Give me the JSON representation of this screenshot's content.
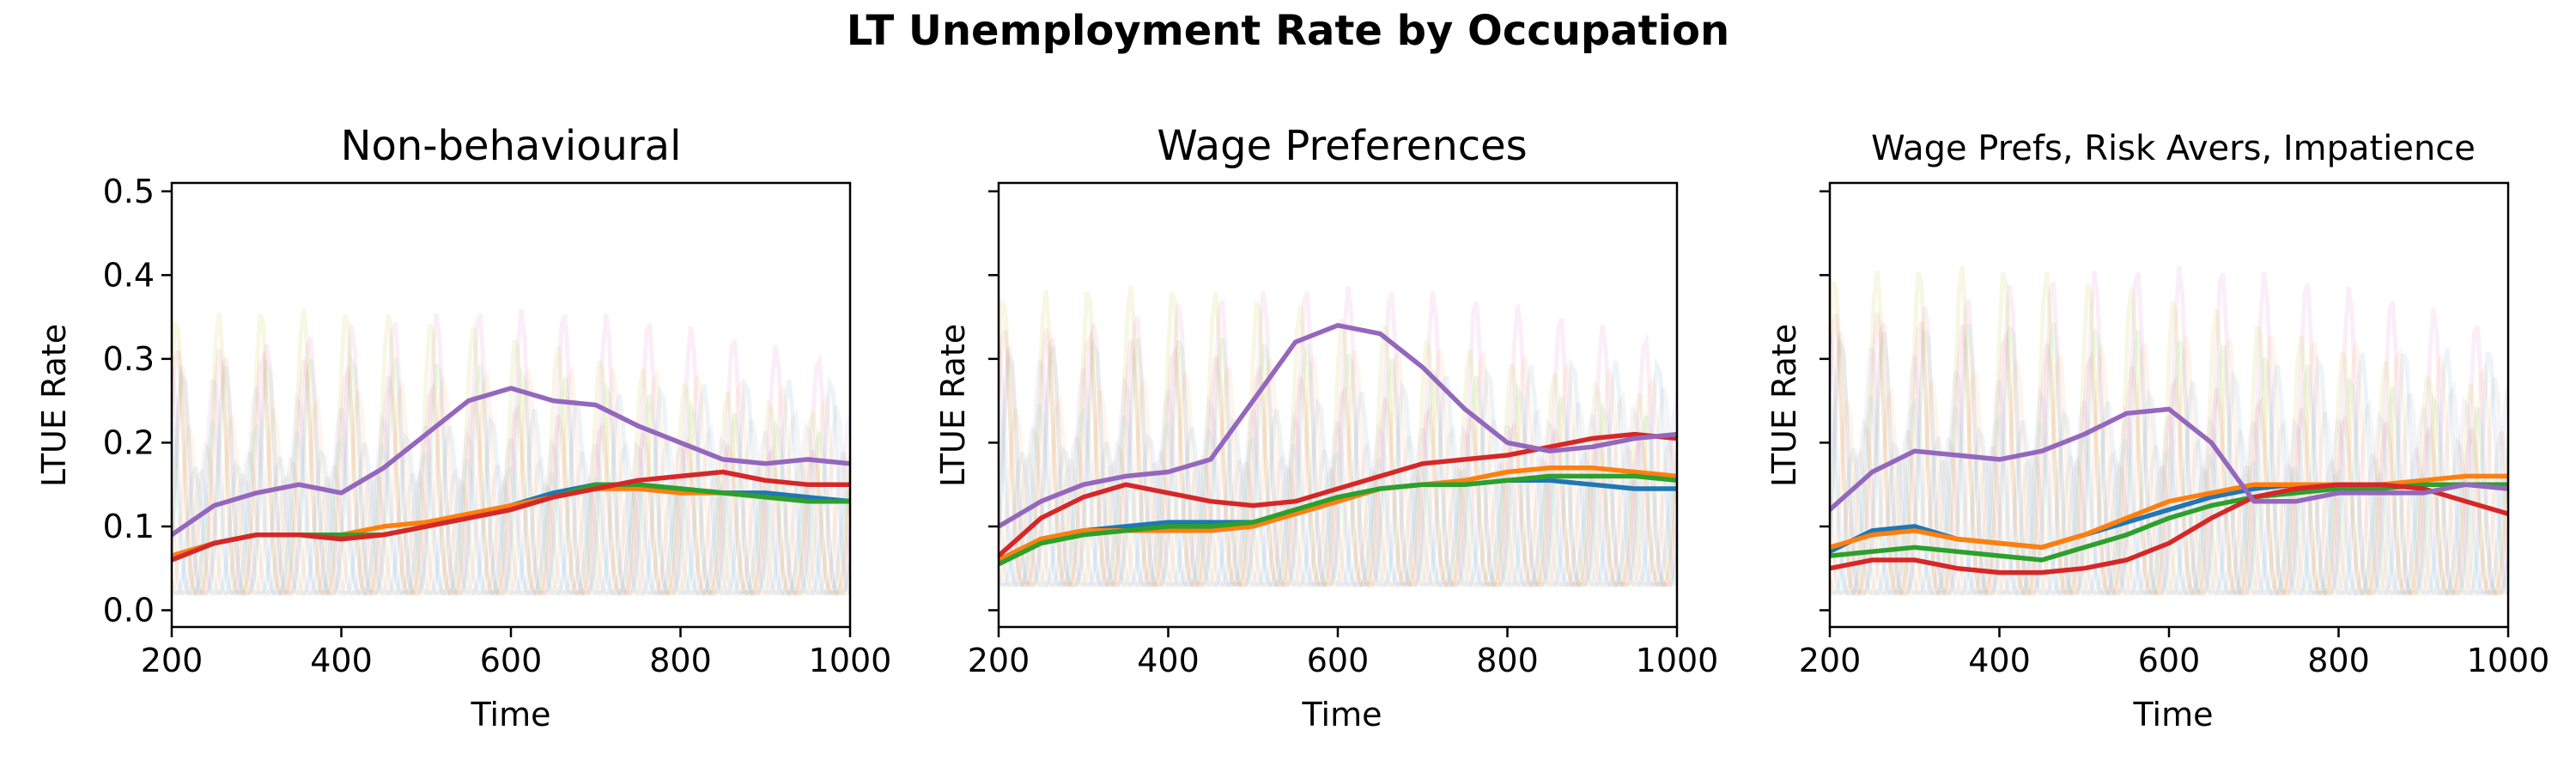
{
  "figure": {
    "title": "LT Unemployment Rate by Occupation"
  },
  "colors": {
    "blue": "#1f77b4",
    "orange": "#ff7f0e",
    "green": "#2ca02c",
    "red": "#d62728",
    "purple": "#9467bd",
    "pink": "#e377c2",
    "olive": "#bcbd22",
    "cyan": "#17becf",
    "brown": "#8c564b",
    "gray": "#7f7f7f"
  },
  "chart_data": [
    {
      "type": "line",
      "title": "Non-behavioural",
      "xlabel": "Time",
      "ylabel": "LTUE Rate",
      "xlim": [
        200,
        1000
      ],
      "ylim": [
        -0.02,
        0.51
      ],
      "xticks": [
        200,
        400,
        600,
        800,
        1000
      ],
      "xtick_labels": [
        "200",
        "400",
        "600",
        "800",
        "1000"
      ],
      "yticks": [
        0.0,
        0.1,
        0.2,
        0.3,
        0.4,
        0.5
      ],
      "ytick_labels": [
        "0.0",
        "0.1",
        "0.2",
        "0.3",
        "0.4",
        "0.5"
      ],
      "grid": false,
      "background_oscillation": {
        "period": 50,
        "peak_high": 0.42,
        "base_low": 0.02
      },
      "series": [
        {
          "color": "blue",
          "x": [
            200,
            250,
            300,
            350,
            400,
            450,
            500,
            550,
            600,
            650,
            700,
            750,
            800,
            850,
            900,
            950,
            1000
          ],
          "y": [
            0.065,
            0.08,
            0.09,
            0.09,
            0.085,
            0.09,
            0.1,
            0.11,
            0.125,
            0.14,
            0.15,
            0.15,
            0.145,
            0.14,
            0.14,
            0.135,
            0.13
          ]
        },
        {
          "color": "orange",
          "x": [
            200,
            250,
            300,
            350,
            400,
            450,
            500,
            550,
            600,
            650,
            700,
            750,
            800,
            850,
            900,
            950,
            1000
          ],
          "y": [
            0.065,
            0.08,
            0.09,
            0.09,
            0.09,
            0.1,
            0.105,
            0.115,
            0.125,
            0.135,
            0.145,
            0.145,
            0.14,
            0.14,
            0.135,
            0.13,
            0.13
          ]
        },
        {
          "color": "green",
          "x": [
            200,
            250,
            300,
            350,
            400,
            450,
            500,
            550,
            600,
            650,
            700,
            750,
            800,
            850,
            900,
            950,
            1000
          ],
          "y": [
            0.06,
            0.08,
            0.09,
            0.09,
            0.09,
            0.09,
            0.1,
            0.11,
            0.12,
            0.135,
            0.15,
            0.15,
            0.145,
            0.14,
            0.135,
            0.13,
            0.13
          ]
        },
        {
          "color": "red",
          "x": [
            200,
            250,
            300,
            350,
            400,
            450,
            500,
            550,
            600,
            650,
            700,
            750,
            800,
            850,
            900,
            950,
            1000
          ],
          "y": [
            0.06,
            0.08,
            0.09,
            0.09,
            0.085,
            0.09,
            0.1,
            0.11,
            0.12,
            0.135,
            0.145,
            0.155,
            0.16,
            0.165,
            0.155,
            0.15,
            0.15
          ]
        },
        {
          "color": "purple",
          "x": [
            200,
            250,
            300,
            350,
            400,
            450,
            500,
            550,
            600,
            650,
            700,
            750,
            800,
            850,
            900,
            950,
            1000
          ],
          "y": [
            0.09,
            0.125,
            0.14,
            0.15,
            0.14,
            0.17,
            0.21,
            0.25,
            0.265,
            0.25,
            0.245,
            0.22,
            0.2,
            0.18,
            0.175,
            0.18,
            0.175
          ]
        }
      ]
    },
    {
      "type": "line",
      "title": "Wage Preferences",
      "xlabel": "Time",
      "ylabel": "LTUE Rate",
      "xlim": [
        200,
        1000
      ],
      "ylim": [
        -0.02,
        0.51
      ],
      "xticks": [
        200,
        400,
        600,
        800,
        1000
      ],
      "xtick_labels": [
        "200",
        "400",
        "600",
        "800",
        "1000"
      ],
      "yticks": [
        0.0,
        0.1,
        0.2,
        0.3,
        0.4,
        0.5
      ],
      "ytick_labels": [
        "",
        "",
        "",
        "",
        "",
        ""
      ],
      "grid": false,
      "background_oscillation": {
        "period": 50,
        "peak_high": 0.45,
        "base_low": 0.03
      },
      "series": [
        {
          "color": "blue",
          "x": [
            200,
            250,
            300,
            350,
            400,
            450,
            500,
            550,
            600,
            650,
            700,
            750,
            800,
            850,
            900,
            950,
            1000
          ],
          "y": [
            0.06,
            0.085,
            0.095,
            0.1,
            0.105,
            0.105,
            0.105,
            0.115,
            0.13,
            0.145,
            0.15,
            0.15,
            0.155,
            0.155,
            0.15,
            0.145,
            0.145
          ]
        },
        {
          "color": "orange",
          "x": [
            200,
            250,
            300,
            350,
            400,
            450,
            500,
            550,
            600,
            650,
            700,
            750,
            800,
            850,
            900,
            950,
            1000
          ],
          "y": [
            0.06,
            0.085,
            0.095,
            0.095,
            0.095,
            0.095,
            0.1,
            0.115,
            0.13,
            0.145,
            0.15,
            0.155,
            0.165,
            0.17,
            0.17,
            0.165,
            0.16
          ]
        },
        {
          "color": "green",
          "x": [
            200,
            250,
            300,
            350,
            400,
            450,
            500,
            550,
            600,
            650,
            700,
            750,
            800,
            850,
            900,
            950,
            1000
          ],
          "y": [
            0.055,
            0.08,
            0.09,
            0.095,
            0.1,
            0.1,
            0.105,
            0.12,
            0.135,
            0.145,
            0.15,
            0.15,
            0.155,
            0.16,
            0.16,
            0.16,
            0.155
          ]
        },
        {
          "color": "red",
          "x": [
            200,
            250,
            300,
            350,
            400,
            450,
            500,
            550,
            600,
            650,
            700,
            750,
            800,
            850,
            900,
            950,
            1000
          ],
          "y": [
            0.065,
            0.11,
            0.135,
            0.15,
            0.14,
            0.13,
            0.125,
            0.13,
            0.145,
            0.16,
            0.175,
            0.18,
            0.185,
            0.195,
            0.205,
            0.21,
            0.205
          ]
        },
        {
          "color": "purple",
          "x": [
            200,
            250,
            300,
            350,
            400,
            450,
            500,
            550,
            600,
            650,
            700,
            750,
            800,
            850,
            900,
            950,
            1000
          ],
          "y": [
            0.1,
            0.13,
            0.15,
            0.16,
            0.165,
            0.18,
            0.25,
            0.32,
            0.34,
            0.33,
            0.29,
            0.24,
            0.2,
            0.19,
            0.195,
            0.205,
            0.21
          ]
        }
      ]
    },
    {
      "type": "line",
      "title": "Wage Prefs, Risk Avers, Impatience",
      "xlabel": "Time",
      "ylabel": "LTUE Rate",
      "xlim": [
        200,
        1000
      ],
      "ylim": [
        -0.02,
        0.51
      ],
      "xticks": [
        200,
        400,
        600,
        800,
        1000
      ],
      "xtick_labels": [
        "200",
        "400",
        "600",
        "800",
        "1000"
      ],
      "yticks": [
        0.0,
        0.1,
        0.2,
        0.3,
        0.4,
        0.5
      ],
      "ytick_labels": [
        "",
        "",
        "",
        "",
        "",
        ""
      ],
      "grid": false,
      "background_oscillation": {
        "period": 50,
        "peak_high": 0.48,
        "base_low": 0.02
      },
      "series": [
        {
          "color": "blue",
          "x": [
            200,
            250,
            300,
            350,
            400,
            450,
            500,
            550,
            600,
            650,
            700,
            750,
            800,
            850,
            900,
            950,
            1000
          ],
          "y": [
            0.07,
            0.095,
            0.1,
            0.085,
            0.08,
            0.075,
            0.09,
            0.105,
            0.12,
            0.135,
            0.145,
            0.15,
            0.15,
            0.15,
            0.15,
            0.15,
            0.145
          ]
        },
        {
          "color": "orange",
          "x": [
            200,
            250,
            300,
            350,
            400,
            450,
            500,
            550,
            600,
            650,
            700,
            750,
            800,
            850,
            900,
            950,
            1000
          ],
          "y": [
            0.075,
            0.09,
            0.095,
            0.085,
            0.08,
            0.075,
            0.09,
            0.11,
            0.13,
            0.14,
            0.15,
            0.15,
            0.15,
            0.15,
            0.155,
            0.16,
            0.16
          ]
        },
        {
          "color": "green",
          "x": [
            200,
            250,
            300,
            350,
            400,
            450,
            500,
            550,
            600,
            650,
            700,
            750,
            800,
            850,
            900,
            950,
            1000
          ],
          "y": [
            0.065,
            0.07,
            0.075,
            0.07,
            0.065,
            0.06,
            0.075,
            0.09,
            0.11,
            0.125,
            0.135,
            0.14,
            0.145,
            0.145,
            0.15,
            0.15,
            0.15
          ]
        },
        {
          "color": "red",
          "x": [
            200,
            250,
            300,
            350,
            400,
            450,
            500,
            550,
            600,
            650,
            700,
            750,
            800,
            850,
            900,
            950,
            1000
          ],
          "y": [
            0.05,
            0.06,
            0.06,
            0.05,
            0.045,
            0.045,
            0.05,
            0.06,
            0.08,
            0.11,
            0.135,
            0.145,
            0.15,
            0.15,
            0.145,
            0.13,
            0.115
          ]
        },
        {
          "color": "purple",
          "x": [
            200,
            250,
            300,
            350,
            400,
            450,
            500,
            550,
            600,
            650,
            700,
            750,
            800,
            850,
            900,
            950,
            1000
          ],
          "y": [
            0.12,
            0.165,
            0.19,
            0.185,
            0.18,
            0.19,
            0.21,
            0.235,
            0.24,
            0.2,
            0.13,
            0.13,
            0.14,
            0.14,
            0.14,
            0.15,
            0.145
          ]
        }
      ]
    }
  ]
}
